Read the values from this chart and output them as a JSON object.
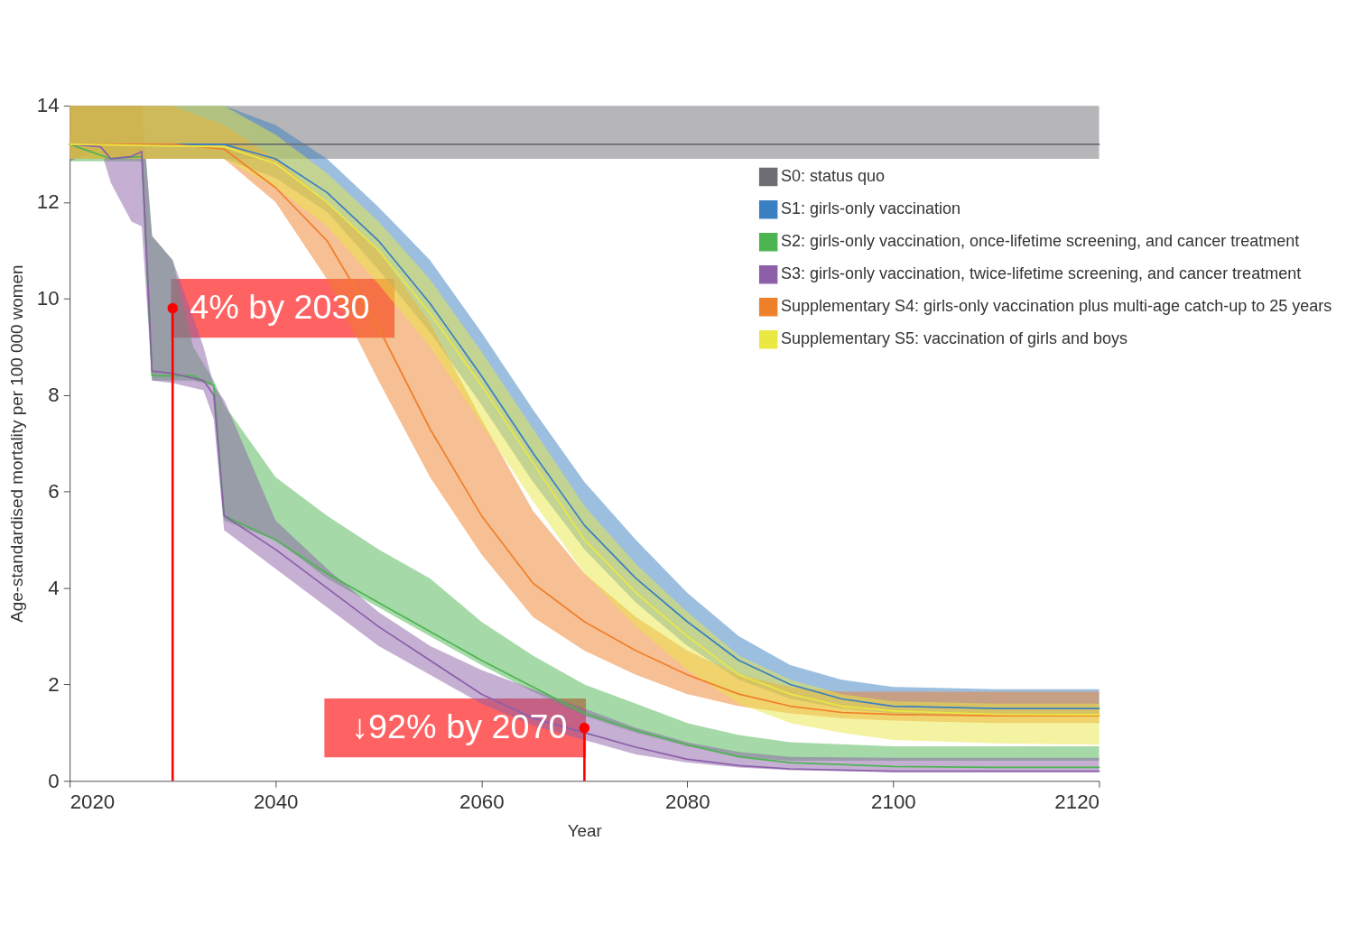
{
  "chart_data": {
    "type": "line",
    "xlabel": "Year",
    "ylabel": "Age-standardised mortality per 100 000 women",
    "xlim": [
      2020,
      2120
    ],
    "xticks": [
      2020,
      2040,
      2060,
      2080,
      2100,
      2120
    ],
    "ylim": [
      0,
      14
    ],
    "yticks": [
      0,
      2,
      4,
      6,
      8,
      10,
      12,
      14
    ],
    "grid": false,
    "legend": "top right",
    "series": [
      {
        "name": "S0: status quo",
        "color": "#6d6e73",
        "x": [
          2020,
          2120
        ],
        "values": [
          13.2,
          13.2
        ],
        "lower": [
          12.9,
          12.9
        ],
        "upper": [
          14.0,
          14.0
        ]
      },
      {
        "name": "S1: girls-only vaccination",
        "color": "#3a7fc1",
        "x": [
          2020,
          2035,
          2040,
          2045,
          2050,
          2055,
          2060,
          2065,
          2070,
          2075,
          2080,
          2085,
          2090,
          2095,
          2100,
          2110,
          2120
        ],
        "values": [
          13.2,
          13.2,
          12.9,
          12.2,
          11.2,
          9.9,
          8.4,
          6.8,
          5.3,
          4.2,
          3.3,
          2.5,
          2.0,
          1.7,
          1.55,
          1.5,
          1.5
        ],
        "lower": [
          12.9,
          12.9,
          12.5,
          11.8,
          10.6,
          9.3,
          7.8,
          6.2,
          4.8,
          3.7,
          2.8,
          2.1,
          1.7,
          1.5,
          1.4,
          1.35,
          1.35
        ],
        "upper": [
          14.0,
          14.0,
          13.6,
          12.9,
          11.9,
          10.8,
          9.3,
          7.7,
          6.2,
          5.0,
          3.9,
          3.0,
          2.4,
          2.1,
          1.95,
          1.9,
          1.9
        ]
      },
      {
        "name": "S2: girls-only vaccination, once-lifetime screening, and cancer treatment",
        "color": "#4cb551",
        "x": [
          2020,
          2024,
          2027,
          2028,
          2030,
          2032,
          2034,
          2035,
          2040,
          2045,
          2050,
          2055,
          2060,
          2065,
          2070,
          2075,
          2080,
          2085,
          2090,
          2100,
          2110,
          2120
        ],
        "values": [
          13.2,
          12.9,
          12.95,
          8.4,
          8.4,
          8.4,
          8.2,
          5.5,
          5.0,
          4.3,
          3.7,
          3.1,
          2.5,
          1.95,
          1.4,
          1.05,
          0.75,
          0.5,
          0.38,
          0.3,
          0.28,
          0.28
        ],
        "lower": [
          12.85,
          12.85,
          12.85,
          8.3,
          8.3,
          8.3,
          8.2,
          5.4,
          5.0,
          4.2,
          3.6,
          3.0,
          2.4,
          1.85,
          1.35,
          1.0,
          0.72,
          0.5,
          0.42,
          0.42,
          0.42,
          0.42
        ],
        "upper": [
          14.0,
          14.0,
          14.0,
          11.3,
          10.8,
          9.0,
          8.3,
          7.8,
          6.3,
          5.5,
          4.8,
          4.2,
          3.3,
          2.6,
          2.0,
          1.6,
          1.2,
          0.95,
          0.8,
          0.72,
          0.72,
          0.72
        ]
      },
      {
        "name": "S3: girls-only vaccination, twice-lifetime screening, and cancer treatment",
        "color": "#8c5fa8",
        "x": [
          2020,
          2023,
          2024,
          2026,
          2027,
          2028,
          2030,
          2033,
          2034,
          2035,
          2040,
          2045,
          2050,
          2055,
          2060,
          2065,
          2070,
          2075,
          2080,
          2085,
          2090,
          2100,
          2120
        ],
        "values": [
          13.2,
          13.15,
          12.9,
          12.95,
          13.05,
          8.5,
          8.45,
          8.3,
          8.0,
          5.5,
          4.8,
          4.0,
          3.2,
          2.5,
          1.8,
          1.3,
          1.0,
          0.7,
          0.45,
          0.32,
          0.25,
          0.2,
          0.2
        ],
        "lower": [
          12.85,
          13.1,
          12.4,
          11.6,
          11.5,
          8.3,
          8.25,
          8.1,
          7.5,
          5.2,
          4.4,
          3.6,
          2.8,
          2.2,
          1.6,
          1.15,
          0.85,
          0.55,
          0.38,
          0.28,
          0.22,
          0.18,
          0.18
        ],
        "upper": [
          14.0,
          14.0,
          14.0,
          14.0,
          14.0,
          11.3,
          10.8,
          9.0,
          8.2,
          7.9,
          5.4,
          4.4,
          3.5,
          2.8,
          2.3,
          1.9,
          1.5,
          1.1,
          0.8,
          0.6,
          0.5,
          0.48,
          0.48
        ]
      },
      {
        "name": "Supplementary S4: girls-only vaccination plus multi-age catch-up to 25 years",
        "color": "#f07f2a",
        "x": [
          2020,
          2030,
          2035,
          2040,
          2045,
          2050,
          2055,
          2060,
          2065,
          2070,
          2075,
          2080,
          2085,
          2090,
          2095,
          2100,
          2110,
          2120
        ],
        "values": [
          13.2,
          13.2,
          13.1,
          12.3,
          11.2,
          9.4,
          7.3,
          5.5,
          4.1,
          3.3,
          2.7,
          2.2,
          1.8,
          1.55,
          1.42,
          1.38,
          1.35,
          1.35
        ],
        "lower": [
          12.9,
          12.9,
          12.9,
          12.0,
          10.4,
          8.3,
          6.3,
          4.7,
          3.4,
          2.7,
          2.2,
          1.8,
          1.55,
          1.4,
          1.3,
          1.25,
          1.2,
          1.2
        ],
        "upper": [
          14.0,
          14.0,
          13.6,
          12.9,
          12.0,
          11.0,
          9.5,
          7.5,
          5.6,
          4.3,
          3.4,
          2.7,
          2.2,
          1.95,
          1.85,
          1.85,
          1.85,
          1.85
        ]
      },
      {
        "name": "Supplementary S5: vaccination of girls and boys",
        "color": "#eae843",
        "x": [
          2020,
          2035,
          2040,
          2045,
          2050,
          2055,
          2060,
          2065,
          2070,
          2075,
          2080,
          2085,
          2090,
          2095,
          2100,
          2110,
          2120
        ],
        "values": [
          13.2,
          13.15,
          12.8,
          12.0,
          11.0,
          9.7,
          8.2,
          6.6,
          5.0,
          3.9,
          3.0,
          2.2,
          1.8,
          1.55,
          1.45,
          1.38,
          1.37
        ],
        "lower": [
          12.9,
          12.9,
          12.3,
          11.5,
          10.3,
          9.0,
          7.4,
          5.8,
          4.3,
          3.2,
          2.3,
          1.6,
          1.2,
          1.0,
          0.85,
          0.78,
          0.75
        ],
        "upper": [
          14.0,
          14.0,
          13.4,
          12.6,
          11.6,
          10.4,
          8.9,
          7.3,
          5.7,
          4.5,
          3.5,
          2.6,
          2.1,
          1.8,
          1.65,
          1.6,
          1.6
        ]
      }
    ],
    "annotations": [
      {
        "text": "4% by 2030",
        "x": 2030,
        "y": 9.8
      },
      {
        "text": "↓92% by 2070",
        "x": 2070,
        "y": 1.1
      }
    ]
  }
}
